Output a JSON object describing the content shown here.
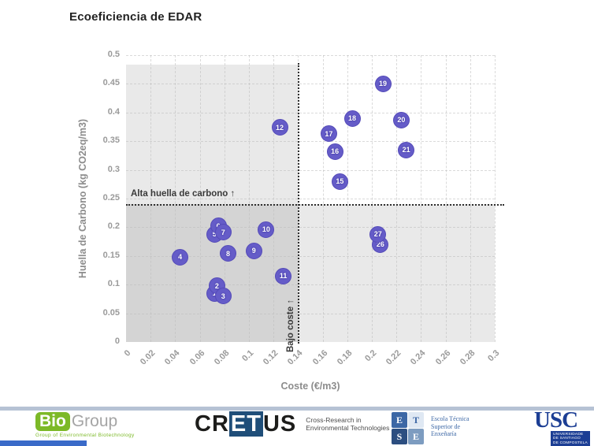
{
  "title": "Ecoeficiencia de EDAR",
  "chart_data": {
    "type": "scatter",
    "title": "Ecoeficiencia de EDAR",
    "xlabel": "Coste (€/m3)",
    "ylabel": "Huella de Carbono (kg CO2eq/m3)",
    "xlim": [
      0,
      0.3
    ],
    "ylim": [
      0,
      0.5
    ],
    "x_tick_values": [
      0,
      0.02,
      0.04,
      0.06,
      0.08,
      0.1,
      0.12,
      0.14,
      0.16,
      0.18,
      0.2,
      0.22,
      0.24,
      0.26,
      0.28,
      0.3
    ],
    "x_tick_labels": [
      "0",
      "0.02",
      "0.04",
      "0.06",
      "0.08",
      "0.1",
      "0.12",
      "0.14",
      "0.16",
      "0.18",
      "0.2",
      "0.22",
      "0.24",
      "0.26",
      "0.28",
      "0.3"
    ],
    "y_tick_values": [
      0,
      0.05,
      0.1,
      0.15,
      0.2,
      0.25,
      0.3,
      0.35,
      0.4,
      0.45,
      0.5
    ],
    "y_tick_labels": [
      "0",
      "0.05",
      "0.1",
      "0.15",
      "0.2",
      "0.25",
      "0.3",
      "0.35",
      "0.4",
      "0.45",
      "0.5"
    ],
    "grid": true,
    "legend": "none",
    "threshold_cost": 0.14,
    "threshold_carbon": 0.24,
    "marker_color": "#655cc8",
    "annotations": {
      "high_carbon": "Alta huella de carbono ↑",
      "low_cost": "Bajo coste ↑"
    },
    "points": [
      {
        "label": "1",
        "x": 0.072,
        "y": 0.085
      },
      {
        "label": "2",
        "x": 0.074,
        "y": 0.098
      },
      {
        "label": "3",
        "x": 0.079,
        "y": 0.08
      },
      {
        "label": "4",
        "x": 0.044,
        "y": 0.148
      },
      {
        "label": "5",
        "x": 0.072,
        "y": 0.188
      },
      {
        "label": "6",
        "x": 0.075,
        "y": 0.202
      },
      {
        "label": "7",
        "x": 0.079,
        "y": 0.191
      },
      {
        "label": "8",
        "x": 0.083,
        "y": 0.154
      },
      {
        "label": "9",
        "x": 0.104,
        "y": 0.159
      },
      {
        "label": "10",
        "x": 0.114,
        "y": 0.196
      },
      {
        "label": "11",
        "x": 0.128,
        "y": 0.115
      },
      {
        "label": "12",
        "x": 0.125,
        "y": 0.374
      },
      {
        "label": "15",
        "x": 0.174,
        "y": 0.28
      },
      {
        "label": "16",
        "x": 0.17,
        "y": 0.332
      },
      {
        "label": "17",
        "x": 0.165,
        "y": 0.363
      },
      {
        "label": "18",
        "x": 0.184,
        "y": 0.39
      },
      {
        "label": "19",
        "x": 0.209,
        "y": 0.45
      },
      {
        "label": "20",
        "x": 0.224,
        "y": 0.387
      },
      {
        "label": "21",
        "x": 0.228,
        "y": 0.335
      },
      {
        "label": "26",
        "x": 0.207,
        "y": 0.17
      },
      {
        "label": "27",
        "x": 0.205,
        "y": 0.188
      }
    ]
  },
  "footer": {
    "biogroup": {
      "bio": "Bio",
      "group": "Group",
      "tagline": "Group of Environmental Biotechnology"
    },
    "cretus": {
      "cr": "CR",
      "et": "ET",
      "us": "US",
      "tagline_line1": "Cross-Research in",
      "tagline_line2": "Environmental Technologies"
    },
    "etse": {
      "letter1": "E",
      "letter2": "T",
      "letter3": "S",
      "letter4": "E",
      "name_line1": "Escola Técnica",
      "name_line2": "Superior de",
      "name_line3": "Enxeñaría"
    },
    "usc": {
      "acronym": "USC",
      "name_line1": "UNIVERSIDADE",
      "name_line2": "DE SANTIAGO",
      "name_line3": "DE COMPOSTELA"
    }
  }
}
